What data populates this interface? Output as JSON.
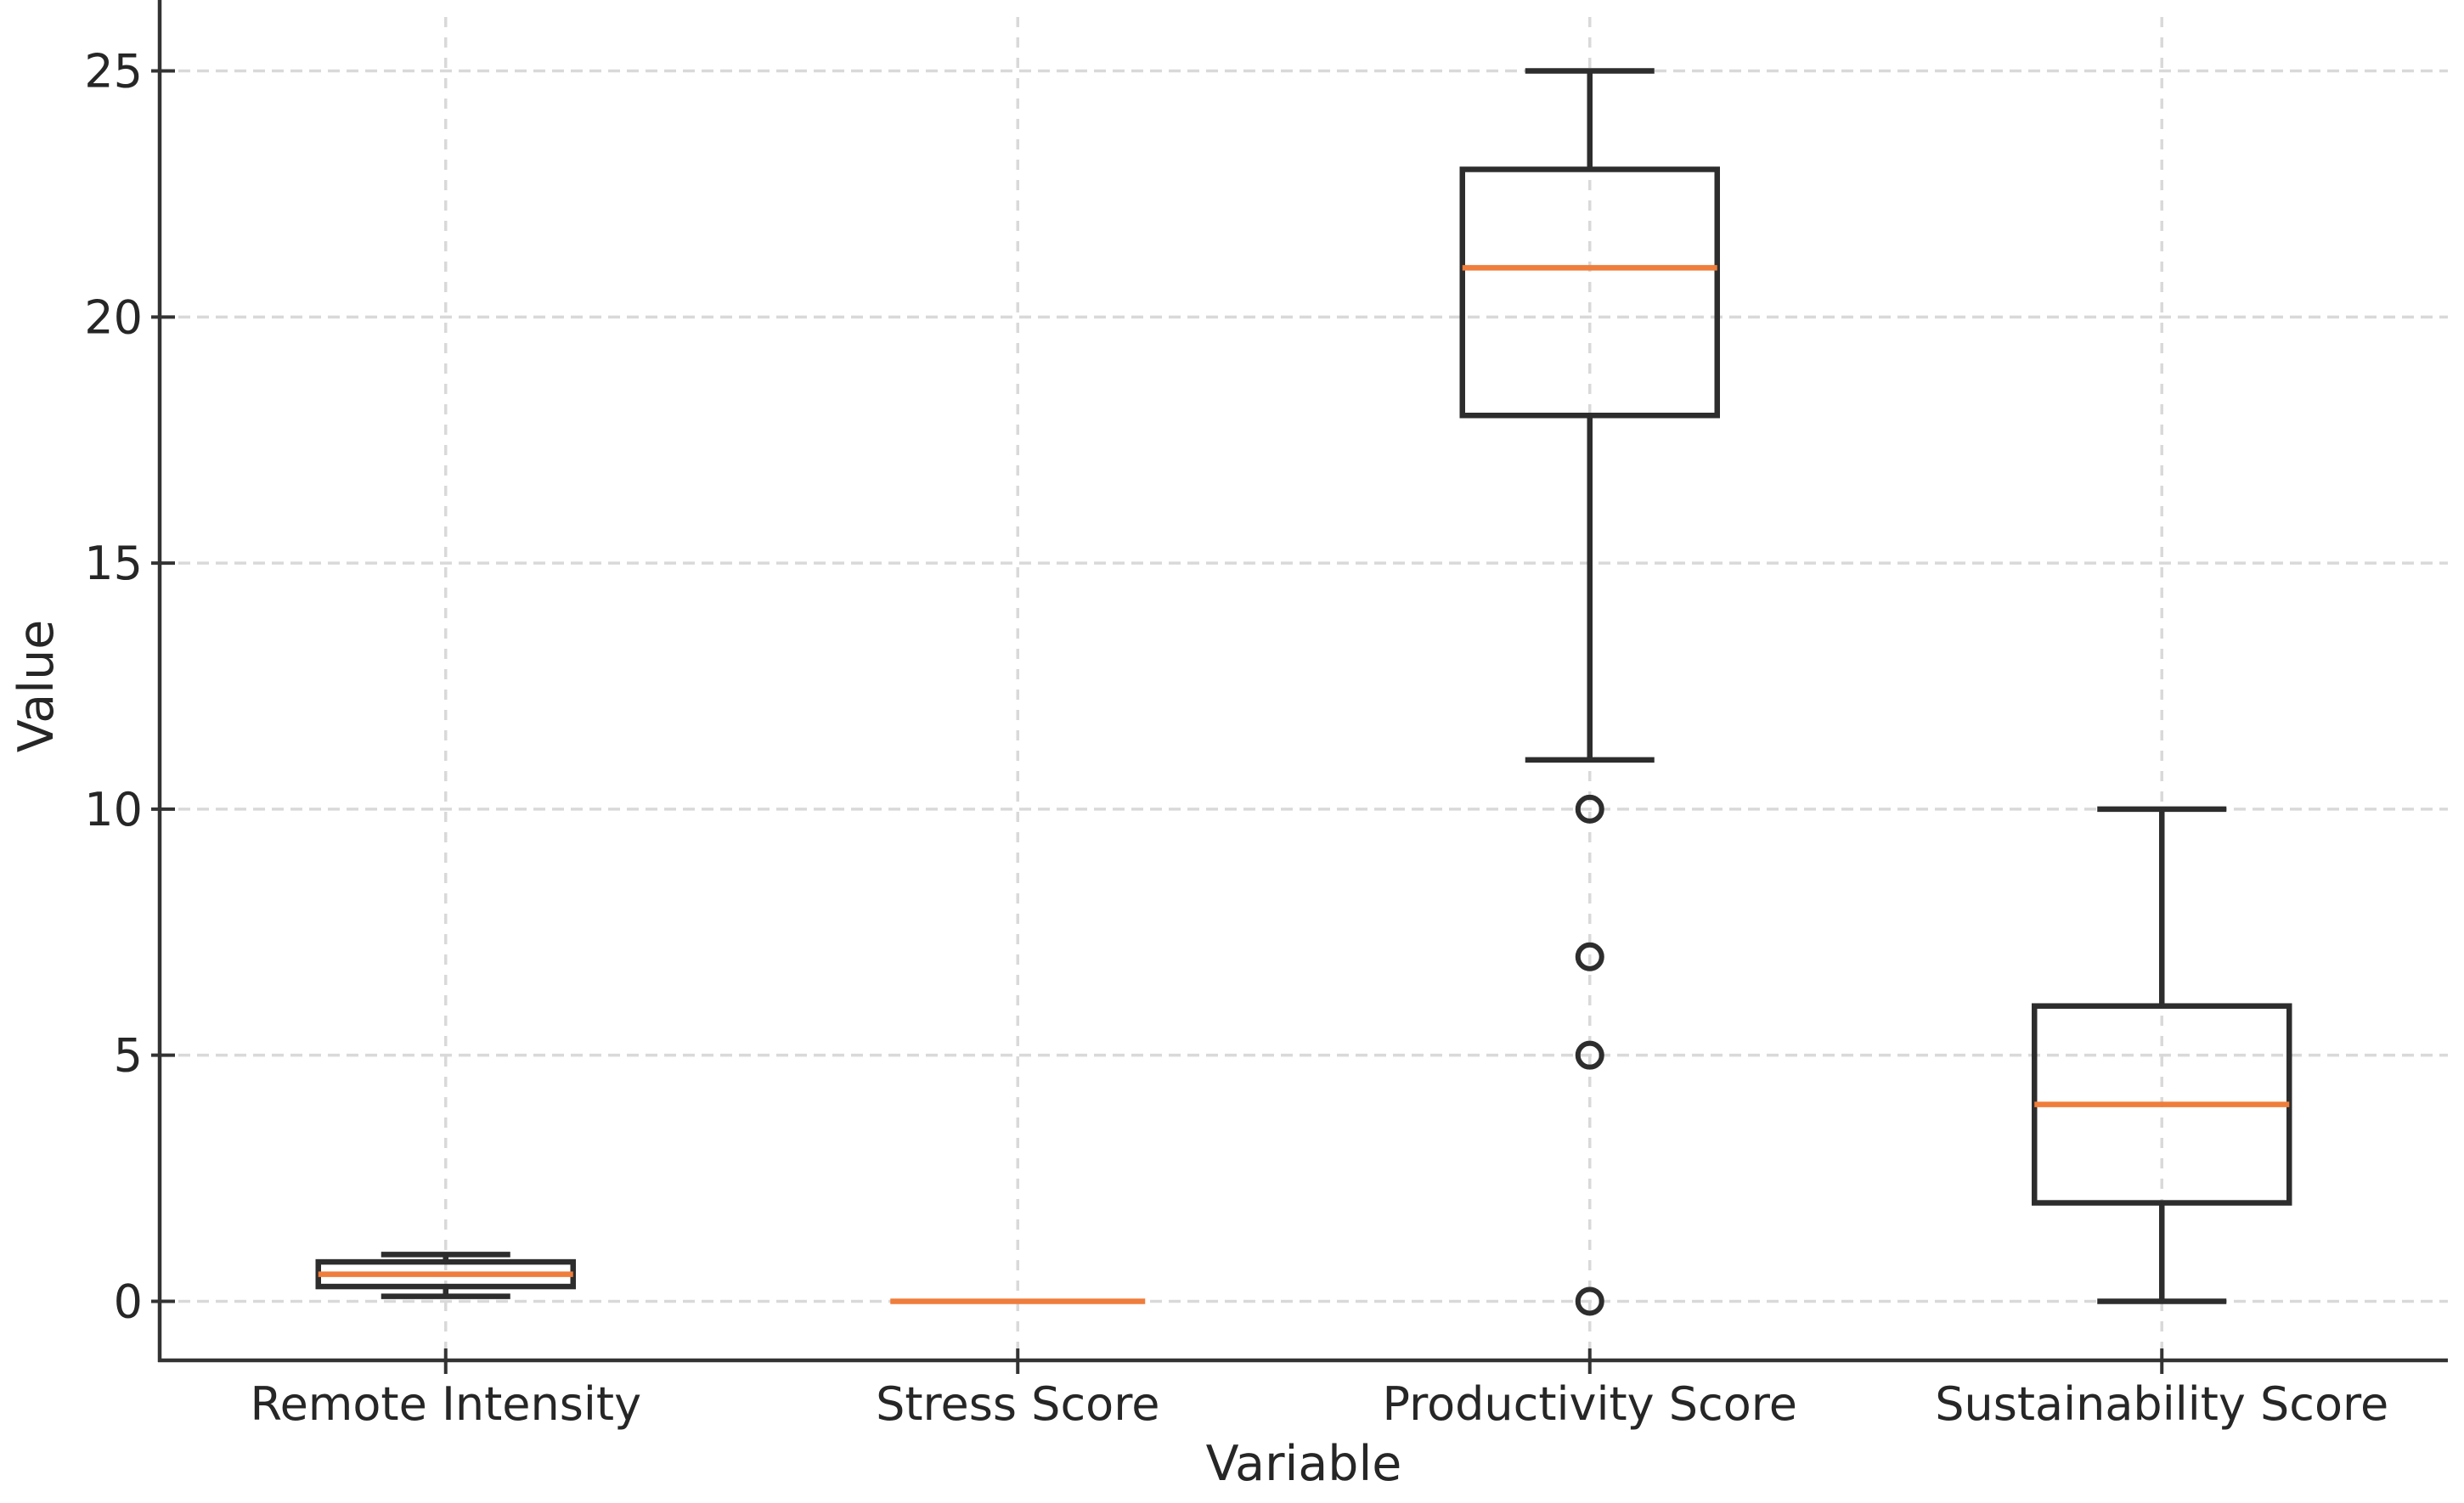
{
  "chart_data": {
    "type": "box",
    "title": "",
    "xlabel": "Variable",
    "ylabel": "Value",
    "categories": [
      "Remote Intensity",
      "Stress Score",
      "Productivity Score",
      "Sustainability Score"
    ],
    "yticks": [
      0,
      5,
      10,
      15,
      20,
      25
    ],
    "ylim": [
      -1.2,
      26.2
    ],
    "grid": {
      "horizontal": true,
      "vertical": true,
      "linestyle": "dashed",
      "legend": "none"
    },
    "series": [
      {
        "name": "Remote Intensity",
        "whisker_low": 0.1,
        "q1": 0.3,
        "median": 0.55,
        "q3": 0.8,
        "whisker_high": 0.95,
        "outliers": []
      },
      {
        "name": "Stress Score",
        "whisker_low": 0,
        "q1": 0,
        "median": 0,
        "q3": 0,
        "whisker_high": 0,
        "outliers": []
      },
      {
        "name": "Productivity Score",
        "whisker_low": 11,
        "q1": 18,
        "median": 21,
        "q3": 23,
        "whisker_high": 25,
        "outliers": [
          10,
          7,
          5,
          0
        ]
      },
      {
        "name": "Sustainability Score",
        "whisker_low": 0,
        "q1": 2,
        "median": 4,
        "q3": 6,
        "whisker_high": 10,
        "outliers": []
      }
    ],
    "colors": {
      "median": "#ef7d3b",
      "box_stroke": "#2d2d2d",
      "grid": "#d9d9d9",
      "spine": "#333333",
      "text": "#262626",
      "background": "#ffffff"
    }
  }
}
